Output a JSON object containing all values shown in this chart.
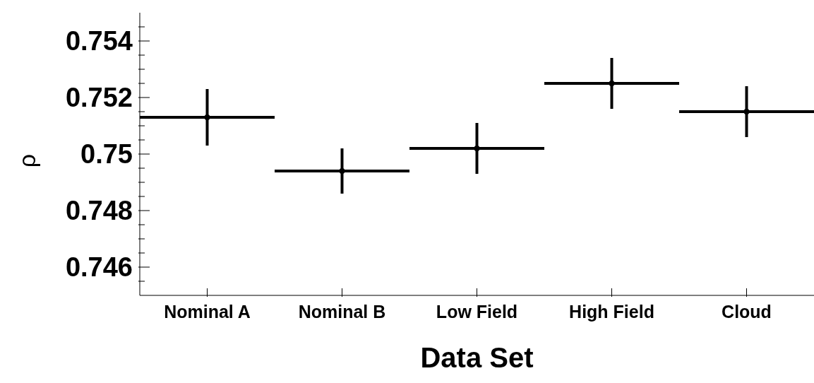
{
  "chart_data": {
    "type": "scatter",
    "xlabel": "Data Set",
    "ylabel": "ρ",
    "categories": [
      "Nominal A",
      "Nominal B",
      "Low Field",
      "High Field",
      "Cloud"
    ],
    "values": [
      0.7513,
      0.7494,
      0.7502,
      0.7525,
      0.7515
    ],
    "errors": [
      0.001,
      0.0008,
      0.0009,
      0.0009,
      0.0009
    ],
    "color": "#000000",
    "ylim": [
      0.745,
      0.755
    ],
    "yticks": [
      {
        "value": 0.7455,
        "label": null
      },
      0.746,
      {
        "value": 0.7465,
        "label": null
      },
      {
        "value": 0.747,
        "label": null
      },
      {
        "value": 0.7475,
        "label": null
      },
      0.748,
      {
        "value": 0.7485,
        "label": null
      },
      {
        "value": 0.749,
        "label": null
      },
      {
        "value": 0.7495,
        "label": null
      },
      0.75,
      {
        "value": 0.7505,
        "label": null
      },
      {
        "value": 0.751,
        "label": null
      },
      {
        "value": 0.7515,
        "label": null
      },
      0.752,
      {
        "value": 0.7525,
        "label": null
      },
      {
        "value": 0.753,
        "label": null
      },
      {
        "value": 0.7535,
        "label": null
      },
      0.754,
      {
        "value": 0.7545,
        "label": null
      }
    ],
    "grid": false
  }
}
